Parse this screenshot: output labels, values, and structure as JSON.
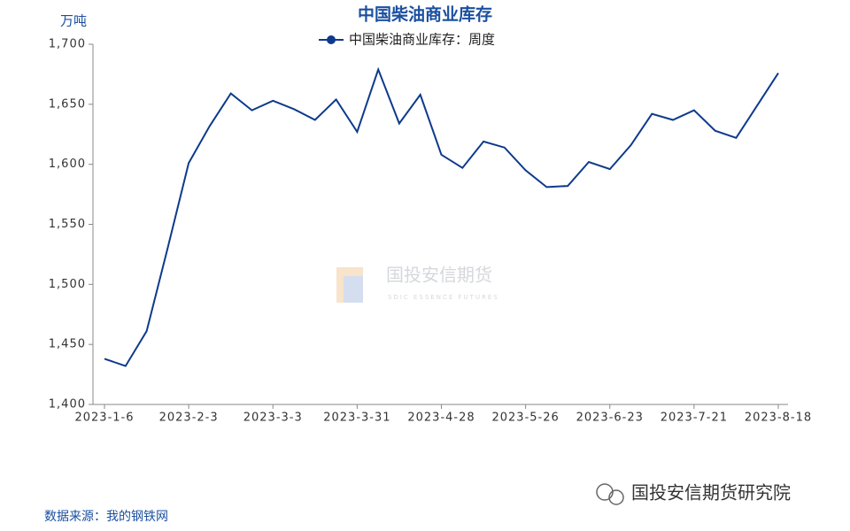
{
  "chart_data": {
    "type": "line",
    "title": "中国柴油商业库存",
    "y_unit": "万吨",
    "categories": [
      "2023-1-6",
      null,
      null,
      null,
      "2023-2-3",
      null,
      null,
      null,
      "2023-3-3",
      null,
      null,
      null,
      "2023-3-31",
      null,
      null,
      null,
      "2023-4-28",
      null,
      null,
      null,
      "2023-5-26",
      null,
      null,
      null,
      "2023-6-23",
      null,
      null,
      null,
      "2023-7-21",
      null,
      null,
      null,
      "2023-8-18"
    ],
    "series": [
      {
        "name": "中国柴油商业库存：周度",
        "color": "#0d3a8c",
        "values": [
          1438,
          1432,
          1461,
          1530,
          1601,
          1632,
          1659,
          1645,
          1653,
          1646,
          1637,
          1654,
          1627,
          1679,
          1634,
          1658,
          1608,
          1597,
          1619,
          1614,
          1595,
          1581,
          1582,
          1602,
          1596,
          1616,
          1642,
          1637,
          1645,
          1628,
          1622,
          1649,
          1676
        ]
      }
    ],
    "ylim": [
      1400,
      1700
    ],
    "yticks": [
      {
        "value": 1400,
        "label": "1,400"
      },
      {
        "value": 1450,
        "label": "1,450"
      },
      {
        "value": 1500,
        "label": "1,500"
      },
      {
        "value": 1550,
        "label": "1,550"
      },
      {
        "value": 1600,
        "label": "1,600"
      },
      {
        "value": 1650,
        "label": "1,650"
      },
      {
        "value": 1700,
        "label": "1,700"
      }
    ],
    "grid": false,
    "legend": "top"
  },
  "source": "数据来源：我的钢铁网",
  "watermark": {
    "name": "国投安信期货",
    "english": "SDIC ESSENCE FUTURES"
  },
  "footer": "国投安信期货研究院"
}
